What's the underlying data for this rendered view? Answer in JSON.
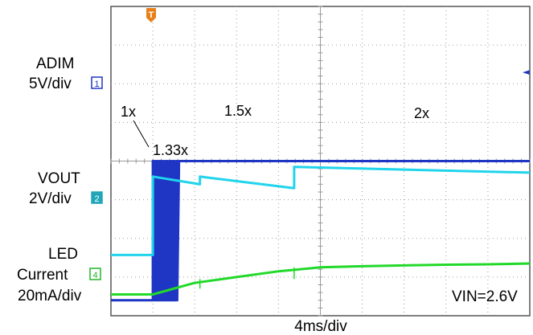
{
  "chart_data": {
    "type": "line",
    "title": "",
    "xlabel": "4ms/div",
    "ylabel": "",
    "x_unit": "ms",
    "xlim": [
      -4,
      36
    ],
    "grid": true,
    "annotation": "VIN=2.6V",
    "trigger_marker": "T",
    "channels": [
      {
        "name": "ADIM",
        "scale_label": "5V/div",
        "number": "1",
        "color": "#1f35c4",
        "points": [
          [
            -4,
            0.4
          ],
          [
            0,
            0.4
          ],
          [
            0,
            3.8
          ],
          [
            2.5,
            3.8
          ],
          [
            2.5,
            4.0
          ],
          [
            36,
            4.0
          ]
        ],
        "pwm_burst": {
          "x_start": 0,
          "x_end": 2.5,
          "low": 0.4,
          "high": 4.0,
          "pulses": 8
        }
      },
      {
        "name": "VOUT",
        "scale_label": "2V/div",
        "number": "2",
        "color": "#20d4ec",
        "points": [
          [
            -4,
            1.57
          ],
          [
            0,
            1.57
          ],
          [
            0,
            3.6
          ],
          [
            4.5,
            3.4
          ],
          [
            4.5,
            3.6
          ],
          [
            13.5,
            3.3
          ],
          [
            13.5,
            3.85
          ],
          [
            36,
            3.7
          ]
        ]
      },
      {
        "name": "LED Current",
        "scale_label": "20mA/div",
        "number": "4",
        "color": "#22d92a",
        "points": [
          [
            -4,
            0.55
          ],
          [
            0,
            0.55
          ],
          [
            4,
            0.85
          ],
          [
            8,
            1.0
          ],
          [
            12,
            1.15
          ],
          [
            16,
            1.25
          ],
          [
            20,
            1.28
          ],
          [
            24,
            1.3
          ],
          [
            28,
            1.32
          ],
          [
            32,
            1.33
          ],
          [
            36,
            1.35
          ]
        ],
        "spikes": [
          {
            "x": 4.5,
            "depth": 0.25
          },
          {
            "x": 13.5,
            "depth": 0.3
          }
        ]
      }
    ],
    "mode_labels": [
      "1x",
      "1.33x",
      "1.5x",
      "2x"
    ],
    "ground_arrow": "◄"
  }
}
